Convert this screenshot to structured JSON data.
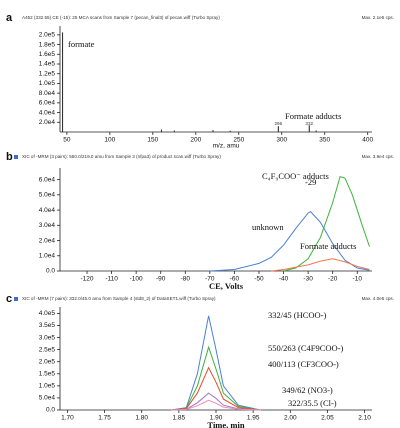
{
  "chart_data": [
    {
      "type": "spectrum",
      "label": "a",
      "header": "A452 (332.55) CE (-15): 25 MCA scans from Sample 7 (pecan_final3) of pecan.wiff (Turbo Spray)",
      "header_right": "Max. 2.1e5 cps.",
      "x_label": "m/z, amu",
      "annotations": [
        "formate",
        "Formate adducts",
        "296",
        "332"
      ],
      "color": "#222222",
      "x": [
        45,
        160,
        175,
        220,
        240,
        296,
        332,
        340
      ],
      "values": [
        205000,
        5000,
        3000,
        4000,
        2500,
        12000,
        14000,
        3000
      ],
      "xlim": [
        42,
        405
      ],
      "ylim": [
        0,
        210000
      ],
      "xticks": [
        50,
        100,
        150,
        200,
        250,
        300,
        350,
        400
      ],
      "yticks": [
        {
          "value": 20000,
          "label": "2.0e4"
        },
        {
          "value": 40000,
          "label": "4.0e4"
        },
        {
          "value": 60000,
          "label": "6.0e4"
        },
        {
          "value": 80000,
          "label": "8.0e4"
        },
        {
          "value": 100000,
          "label": "1.0e5"
        },
        {
          "value": 120000,
          "label": "1.2e5"
        },
        {
          "value": 140000,
          "label": "1.4e5"
        },
        {
          "value": 160000,
          "label": "1.6e5"
        },
        {
          "value": 180000,
          "label": "1.8e5"
        },
        {
          "value": 200000,
          "label": "2.0e5"
        }
      ]
    },
    {
      "type": "line",
      "label": "b",
      "header": "XIC of -MRM (3 pairs): 550.0/219.0 amu from Sample 3 (nfpa3) of product scan.wiff (Turbo Spray)",
      "header_right": "Max. 3.9e4 cps.",
      "x_label": "CE, Volts",
      "annotations": [
        "-29"
      ],
      "series": [
        {
          "name": "unknown",
          "color": "#4a7fd6",
          "x": [
            -70,
            -60,
            -50,
            -45,
            -40,
            -35,
            -30,
            -29,
            -25,
            -20,
            -15,
            -10,
            -5
          ],
          "values": [
            0,
            1000,
            5000,
            9000,
            17000,
            28000,
            38000,
            39000,
            32000,
            18000,
            7000,
            2000,
            500
          ]
        },
        {
          "name": "C₄F₉COO⁻ adducts",
          "color": "#3cb43c",
          "x": [
            -40,
            -35,
            -30,
            -25,
            -20,
            -17,
            -15,
            -12,
            -8,
            -5
          ],
          "values": [
            0,
            2000,
            8000,
            22000,
            45000,
            62000,
            61000,
            50000,
            30000,
            16000
          ]
        },
        {
          "name": "Formate adducts",
          "color": "#f07850",
          "x": [
            -45,
            -40,
            -30,
            -25,
            -20,
            -15,
            -10,
            -5
          ],
          "values": [
            0,
            1000,
            4000,
            6500,
            8000,
            6000,
            3000,
            1000
          ]
        }
      ],
      "xlim": [
        -131,
        -4
      ],
      "ylim": [
        0,
        65000
      ],
      "xticks": [
        -120,
        -110,
        -100,
        -90,
        -80,
        -70,
        -60,
        -50,
        -40,
        -30,
        -20,
        -10
      ],
      "yticks": [
        {
          "value": 0,
          "label": "0.0"
        },
        {
          "value": 10000,
          "label": "1.0e4"
        },
        {
          "value": 20000,
          "label": "2.0e4"
        },
        {
          "value": 30000,
          "label": "3.0e4"
        },
        {
          "value": 40000,
          "label": "4.0e4"
        },
        {
          "value": 50000,
          "label": "5.0e4"
        },
        {
          "value": 60000,
          "label": "6.0e4"
        }
      ]
    },
    {
      "type": "line",
      "label": "c",
      "header": "XIC of -MRM (7 pairs): 332.0/45.0 amu from Sample 4 (std8_2) of DataSET1.wiff (Turbo Spray)",
      "header_right": "Max. 4.0e5 cps.",
      "x_label": "Time, min",
      "series": [
        {
          "name": "332/45 (HCOO-)",
          "color": "#4a7fd6",
          "x": [
            1.84,
            1.86,
            1.875,
            1.89,
            1.9,
            1.91,
            1.93,
            1.96
          ],
          "values": [
            0,
            10000,
            150000,
            390000,
            250000,
            100000,
            20000,
            0
          ]
        },
        {
          "name": "550/263 (C4F9COO-)",
          "color": "#3cb43c",
          "x": [
            1.84,
            1.86,
            1.875,
            1.89,
            1.9,
            1.91,
            1.93,
            1.96
          ],
          "values": [
            0,
            8000,
            100000,
            260000,
            170000,
            70000,
            15000,
            0
          ]
        },
        {
          "name": "400/113 (CF3COO-)",
          "color": "#e84a2a",
          "x": [
            1.84,
            1.86,
            1.875,
            1.89,
            1.9,
            1.91,
            1.93,
            1.96
          ],
          "values": [
            0,
            6000,
            70000,
            175000,
            115000,
            45000,
            10000,
            0
          ]
        },
        {
          "name": "349/62 (NO3-)",
          "color": "#a070c8",
          "x": [
            1.84,
            1.86,
            1.875,
            1.89,
            1.9,
            1.91,
            1.93,
            1.96
          ],
          "values": [
            0,
            3000,
            30000,
            70000,
            48000,
            20000,
            5000,
            0
          ]
        },
        {
          "name": "322/35.5 (Cl-)",
          "color": "#e890b8",
          "x": [
            1.84,
            1.86,
            1.875,
            1.89,
            1.9,
            1.91,
            1.93,
            1.96
          ],
          "values": [
            0,
            2000,
            18000,
            40000,
            28000,
            12000,
            3000,
            0
          ]
        }
      ],
      "xlim": [
        1.69,
        2.11
      ],
      "ylim": [
        0,
        410000
      ],
      "xticks": [
        {
          "value": 1.7,
          "label": "1.70"
        },
        1.75,
        {
          "value": 1.8,
          "label": "1.80"
        },
        1.85,
        {
          "value": 1.9,
          "label": "1.90"
        },
        1.95,
        {
          "value": 2.0,
          "label": "2.00"
        },
        2.05,
        {
          "value": 2.1,
          "label": "2.10"
        }
      ],
      "yticks": [
        {
          "value": 0,
          "label": "0.0"
        },
        {
          "value": 50000,
          "label": "5.0e4"
        },
        {
          "value": 100000,
          "label": "1.0e5"
        },
        {
          "value": 150000,
          "label": "1.5e5"
        },
        {
          "value": 200000,
          "label": "2.0e5"
        },
        {
          "value": 250000,
          "label": "2.5e5"
        },
        {
          "value": 300000,
          "label": "3.0e5"
        },
        {
          "value": 350000,
          "label": "3.5e5"
        },
        {
          "value": 400000,
          "label": "4.0e5"
        }
      ]
    }
  ]
}
